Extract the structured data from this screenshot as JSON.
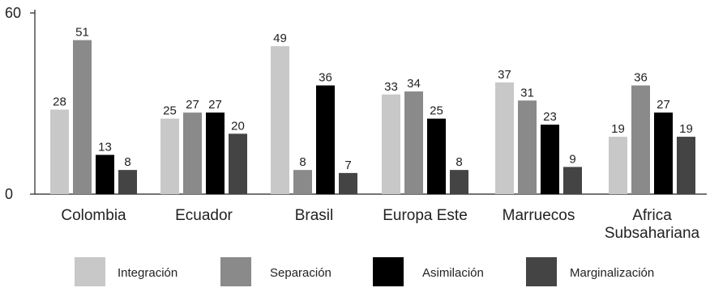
{
  "chart_data": {
    "type": "bar",
    "categories": [
      "Colombia",
      "Ecuador",
      "Brasil",
      "Europa Este",
      "Marruecos",
      "Africa Subsahariana"
    ],
    "category_lines": [
      [
        "Colombia"
      ],
      [
        "Ecuador"
      ],
      [
        "Brasil"
      ],
      [
        "Europa Este"
      ],
      [
        "Marruecos"
      ],
      [
        "Africa",
        "Subsahariana"
      ]
    ],
    "series": [
      {
        "name": "Integración",
        "color": "#c8c8c8",
        "values": [
          28,
          25,
          49,
          33,
          37,
          19
        ]
      },
      {
        "name": "Separación",
        "color": "#8a8a8a",
        "values": [
          51,
          27,
          8,
          34,
          31,
          36
        ]
      },
      {
        "name": "Asimilación",
        "color": "#000000",
        "values": [
          13,
          27,
          36,
          25,
          23,
          27
        ]
      },
      {
        "name": "Marginalización",
        "color": "#444444",
        "values": [
          8,
          20,
          7,
          8,
          9,
          19
        ]
      }
    ],
    "ylim": [
      0,
      60
    ],
    "yticks": [
      0,
      60
    ],
    "title": "",
    "xlabel": "",
    "ylabel": "",
    "grid": false,
    "legend_position": "bottom"
  }
}
